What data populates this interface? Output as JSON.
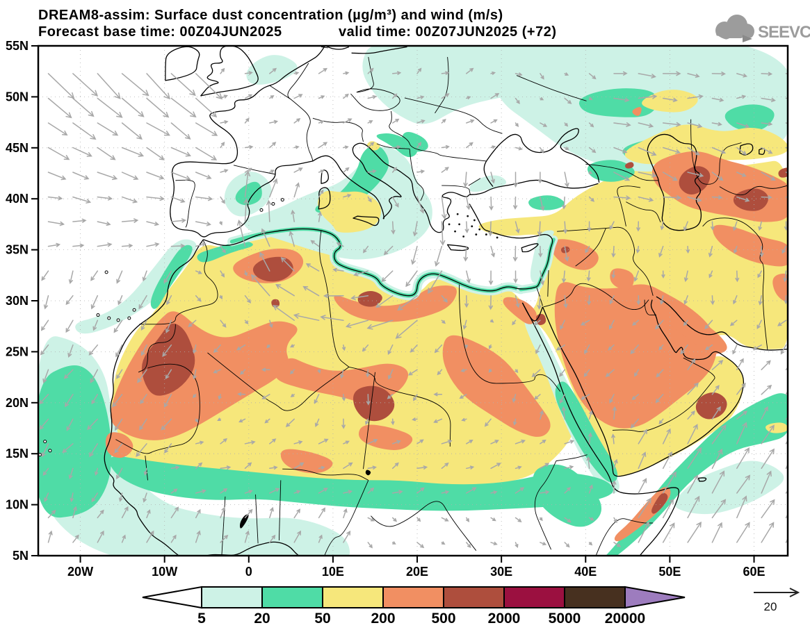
{
  "header": {
    "title": "DREAM8-assim: Surface dust concentration (µg/m³) and wind (m/s)",
    "forecast_base": "Forecast base time: 00Z04JUN2025",
    "valid_time": "valid time: 00Z07JUN2025 (+72)"
  },
  "logo": {
    "name": "SEEVCCC"
  },
  "axes": {
    "lat_labels": [
      "55N",
      "50N",
      "45N",
      "40N",
      "35N",
      "30N",
      "25N",
      "20N",
      "15N",
      "10N",
      "5N"
    ],
    "lon_labels": [
      "20W",
      "10W",
      "0",
      "10E",
      "20E",
      "30E",
      "40E",
      "50E",
      "60E"
    ]
  },
  "colorbar": {
    "tick_labels": [
      "5",
      "20",
      "50",
      "200",
      "500",
      "2000",
      "5000",
      "20000"
    ],
    "segment_colors": [
      "#ffffff",
      "#cdf2e6",
      "#4fdca6",
      "#f6e77b",
      "#f18f62",
      "#ae4e3d",
      "#9b1040",
      "#47301f",
      "#9d7cbe"
    ]
  },
  "wind_legend": {
    "value": "20"
  },
  "chart_data": {
    "type": "heatmap",
    "title": "DREAM8-assim: Surface dust concentration (µg/m³) and wind (m/s)",
    "model": "DREAM8-assim",
    "variable": "Surface dust concentration",
    "units": "µg/m³",
    "overlay": "wind vectors (m/s)",
    "forecast_base_time": "00Z04JUN2025",
    "valid_time": "00Z07JUN2025",
    "lead": "+72",
    "x_ticks": [
      "20W",
      "10W",
      "0",
      "10E",
      "20E",
      "30E",
      "40E",
      "50E",
      "60E"
    ],
    "y_ticks": [
      "5N",
      "10N",
      "15N",
      "20N",
      "25N",
      "30N",
      "35N",
      "40N",
      "45N",
      "50N",
      "55N"
    ],
    "lat_range": [
      "5N",
      "55N"
    ],
    "lon_range": [
      "25W",
      "64E"
    ],
    "contour_levels_ug_m3": [
      5,
      20,
      50,
      200,
      500,
      2000,
      5000,
      20000
    ],
    "level_colors": [
      "#ffffff",
      "#cdf2e6",
      "#4fdca6",
      "#f6e77b",
      "#f18f62",
      "#ae4e3d",
      "#9b1040",
      "#47301f",
      "#9d7cbe"
    ],
    "wind_reference_m_s": 20,
    "legend_position": "bottom",
    "notable_features": [
      "50-200 µg/m³ (yellow) over most of the Sahara, Arabian Peninsula and Middle East",
      "200-500 µg/m³ (orange) lobes over Mauritania/Mali/S Algeria, Libya-Egypt, central Arabia/Persian Gulf, NE Somalia and east of the Caspian Sea",
      "500-2000 µg/m³ (dark red) cores over Western Sahara/Mauritania, central Algeria, SW Libya/Niger, Oman and east of the Caspian",
      "5-50 µg/m³ (cyan/green) fringes over the central Mediterranean, Sahel, tropical Atlantic, Red Sea and north of the Black/Caspian Seas"
    ]
  }
}
